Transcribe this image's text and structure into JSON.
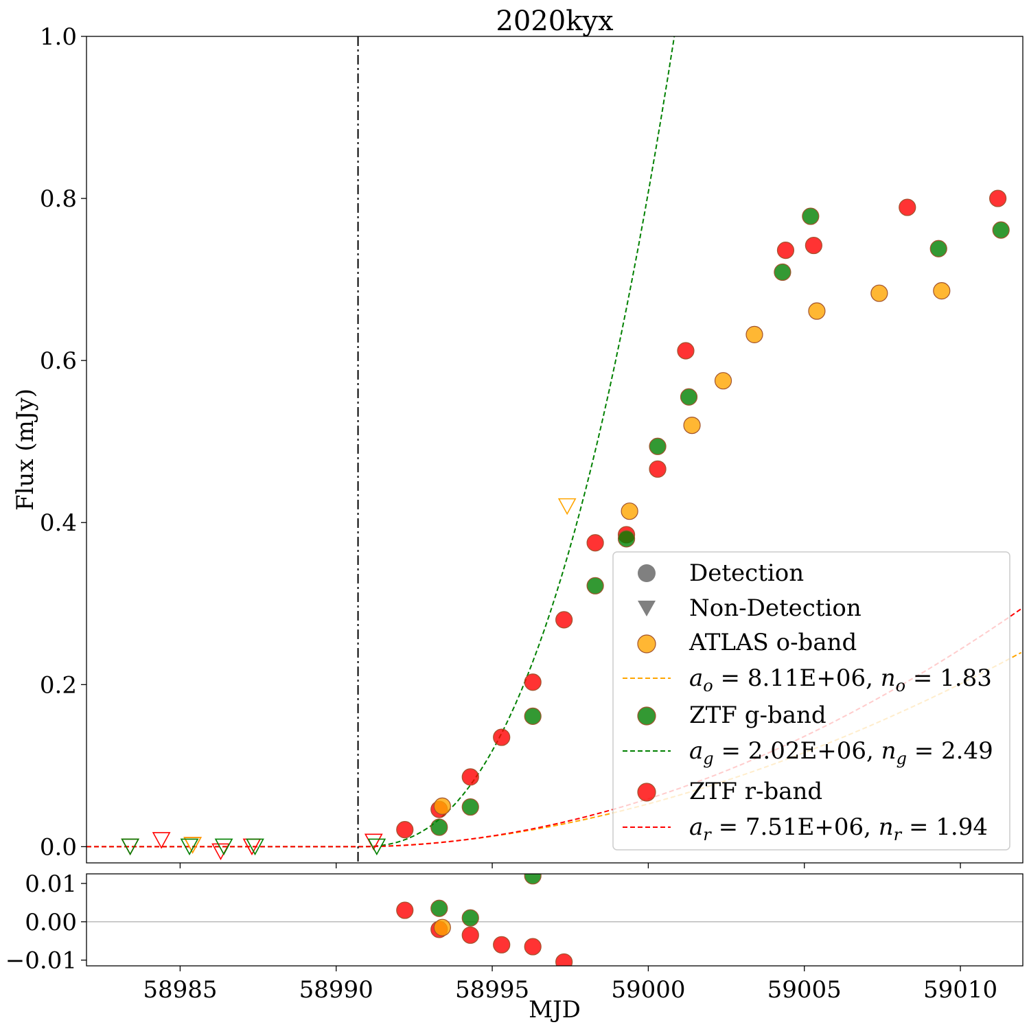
{
  "chart_data": {
    "type": "scatter",
    "title": "2020kyx",
    "xlabel": "MJD",
    "ylabel": "Flux (mJy)",
    "xlim": [
      58982.0,
      59012.0
    ],
    "ylim": [
      -0.02,
      1.0
    ],
    "x_ticks": [
      58985,
      58990,
      58995,
      59000,
      59005,
      59010
    ],
    "y_ticks": [
      0.0,
      0.2,
      0.4,
      0.6,
      0.8,
      1.0
    ],
    "y_tick_labels": [
      "0.0",
      "0.2",
      "0.4",
      "0.6",
      "0.8",
      "1.0"
    ],
    "explosion_epoch": 58990.7,
    "colors": {
      "o": "#FFA500",
      "g": "#008000",
      "r": "#FF0000",
      "edge": "#A0522D",
      "legend_marker": "#808080"
    },
    "series": [
      {
        "name": "ATLAS o-band",
        "band": "o",
        "detections": [
          [
            58993.4,
            0.05
          ],
          [
            58999.4,
            0.414
          ],
          [
            59001.4,
            0.52
          ],
          [
            59002.4,
            0.575
          ],
          [
            59003.4,
            0.632
          ],
          [
            59005.4,
            0.661
          ],
          [
            59007.4,
            0.683
          ],
          [
            59009.4,
            0.686
          ]
        ],
        "nondetections": [
          [
            58985.4,
            0.002
          ],
          [
            58997.4,
            0.42
          ]
        ],
        "fit": {
          "a": 8110000.0,
          "n": 1.83,
          "label_rest": " = 8.11E+06, ",
          "label_rest2": " = 1.83"
        }
      },
      {
        "name": "ZTF g-band",
        "band": "g",
        "detections": [
          [
            58993.3,
            0.024
          ],
          [
            58994.3,
            0.049
          ],
          [
            58996.3,
            0.161
          ],
          [
            58998.3,
            0.322
          ],
          [
            58999.3,
            0.38
          ],
          [
            59000.3,
            0.494
          ],
          [
            59001.3,
            0.555
          ],
          [
            59004.3,
            0.709
          ],
          [
            59005.2,
            0.778
          ],
          [
            59009.3,
            0.738
          ],
          [
            59011.3,
            0.761
          ]
        ],
        "nondetections": [
          [
            58983.4,
            0.0
          ],
          [
            58985.3,
            0.0
          ],
          [
            58986.4,
            0.0
          ],
          [
            58987.4,
            0.0
          ],
          [
            58991.3,
            0.0
          ]
        ],
        "fit": {
          "a": 2020000.0,
          "n": 2.49,
          "label_rest": " = 2.02E+06, ",
          "label_rest2": " = 2.49"
        }
      },
      {
        "name": "ZTF r-band",
        "band": "r",
        "detections": [
          [
            58992.2,
            0.021
          ],
          [
            58993.3,
            0.046
          ],
          [
            58994.3,
            0.086
          ],
          [
            58995.3,
            0.135
          ],
          [
            58996.3,
            0.203
          ],
          [
            58997.3,
            0.28
          ],
          [
            58998.3,
            0.375
          ],
          [
            58999.3,
            0.385
          ],
          [
            59000.3,
            0.466
          ],
          [
            59001.2,
            0.612
          ],
          [
            59004.4,
            0.736
          ],
          [
            59005.3,
            0.742
          ],
          [
            59008.3,
            0.789
          ],
          [
            59011.2,
            0.8
          ]
        ],
        "nondetections": [
          [
            58983.4,
            0.0
          ],
          [
            58984.4,
            0.008
          ],
          [
            58985.4,
            0.002
          ],
          [
            58986.3,
            -0.006
          ],
          [
            58987.3,
            0.0
          ],
          [
            58991.2,
            0.006
          ]
        ],
        "fit": {
          "a": 7510000.0,
          "n": 1.94,
          "label_rest": " = 7.51E+06, ",
          "label_rest2": " = 1.94"
        }
      }
    ],
    "residuals": {
      "ylim": [
        -0.0115,
        0.0125
      ],
      "y_ticks": [
        0.01,
        0.0,
        -0.01
      ],
      "y_tick_labels": [
        "0.01",
        "0.00",
        "−0.01"
      ],
      "points": [
        {
          "band": "r",
          "x": 58992.2,
          "y": 0.003
        },
        {
          "band": "g",
          "x": 58993.3,
          "y": 0.0035
        },
        {
          "band": "r",
          "x": 58993.3,
          "y": -0.002
        },
        {
          "band": "o",
          "x": 58993.4,
          "y": -0.0015
        },
        {
          "band": "g",
          "x": 58994.3,
          "y": 0.001
        },
        {
          "band": "r",
          "x": 58994.3,
          "y": -0.0035
        },
        {
          "band": "r",
          "x": 58995.3,
          "y": -0.006
        },
        {
          "band": "r",
          "x": 58996.3,
          "y": -0.0065
        },
        {
          "band": "g",
          "x": 58996.3,
          "y": 0.012
        },
        {
          "band": "r",
          "x": 58997.3,
          "y": -0.0105
        }
      ]
    },
    "legend": {
      "position": "lower right",
      "detection": "Detection",
      "nondetection": "Non-Detection"
    }
  }
}
